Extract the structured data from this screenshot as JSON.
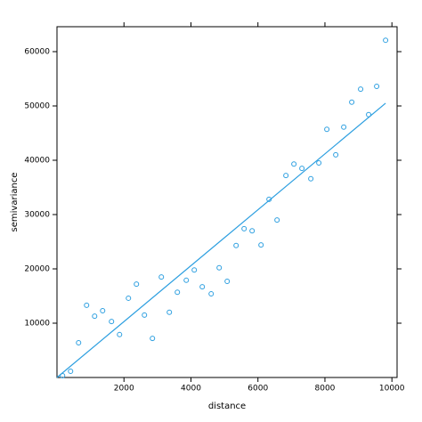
{
  "chart_data": {
    "type": "scatter",
    "xlabel": "distance",
    "ylabel": "semivariance",
    "xlim": [
      0,
      10154
    ],
    "ylim": [
      0,
      64590
    ],
    "xticks": [
      2000,
      4000,
      6000,
      8000,
      10000
    ],
    "yticks": [
      10000,
      20000,
      30000,
      40000,
      50000,
      60000
    ],
    "color": "#2d9fe0",
    "x": [
      167,
      406,
      645,
      884,
      1124,
      1363,
      1628,
      1868,
      2133,
      2372,
      2611,
      2850,
      3116,
      3355,
      3594,
      3860,
      4099,
      4338,
      4604,
      4843,
      5082,
      5348,
      5587,
      5826,
      6092,
      6331,
      6570,
      6835,
      7074,
      7313,
      7579,
      7818,
      8057,
      8323,
      8562,
      8801,
      9066,
      9305,
      9545,
      9811
    ],
    "values": [
      330,
      1150,
      6400,
      13300,
      11300,
      12300,
      10300,
      7900,
      14600,
      17200,
      11500,
      7200,
      18500,
      12000,
      15700,
      17900,
      19800,
      16700,
      15400,
      20200,
      17700,
      24300,
      27400,
      27000,
      24400,
      32800,
      29000,
      37200,
      39300,
      38500,
      36600,
      39500,
      45700,
      41000,
      46100,
      50700,
      53100,
      48400,
      53600,
      62100
    ],
    "fit": {
      "x": [
        0,
        9811
      ],
      "values": [
        0,
        50500
      ]
    }
  }
}
